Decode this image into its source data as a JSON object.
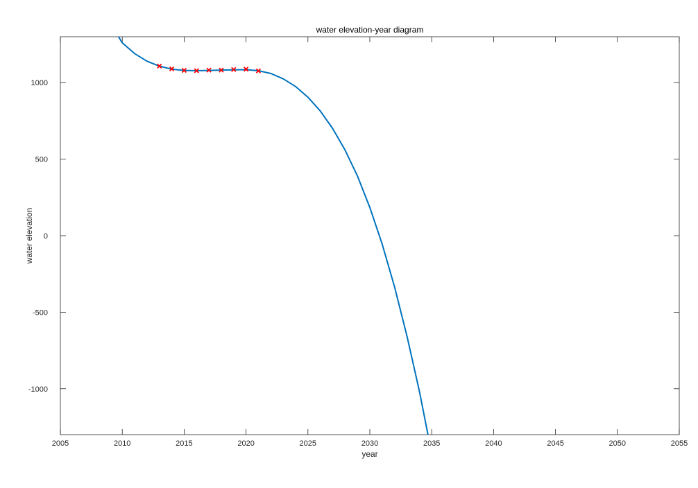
{
  "chart_data": {
    "type": "line",
    "title": "water elevation-year diagram",
    "xlabel": "year",
    "ylabel": "water elevation",
    "xlim": [
      2005,
      2055
    ],
    "ylim": [
      -1300,
      1300
    ],
    "xticks": [
      "2005",
      "2010",
      "2015",
      "2020",
      "2025",
      "2030",
      "2035",
      "2040",
      "2045",
      "2050",
      "2055"
    ],
    "yticks": [
      "-1000",
      "-500",
      "0",
      "500",
      "1000"
    ],
    "grid": false,
    "box": true,
    "series": [
      {
        "kind": "line",
        "color": "#0072bd",
        "x": [
          2009.7,
          2010,
          2011,
          2012,
          2013,
          2014,
          2015,
          2016,
          2017,
          2018,
          2019,
          2020,
          2021,
          2022,
          2023,
          2024,
          2025,
          2026,
          2027,
          2028,
          2029,
          2030,
          2031,
          2032,
          2033,
          2034,
          2034.7
        ],
        "y": [
          1300,
          1260,
          1190,
          1140,
          1108,
          1088,
          1080,
          1078,
          1080,
          1082,
          1084,
          1085,
          1078,
          1060,
          1025,
          975,
          905,
          815,
          700,
          560,
          390,
          185,
          -55,
          -335,
          -655,
          -1015,
          -1300
        ]
      },
      {
        "kind": "scatter",
        "color": "#ff0000",
        "marker": "x",
        "x": [
          2013,
          2014,
          2015,
          2016,
          2017,
          2018,
          2019,
          2020,
          2021
        ],
        "y": [
          1108,
          1090,
          1080,
          1078,
          1082,
          1082,
          1086,
          1088,
          1077
        ]
      }
    ]
  }
}
